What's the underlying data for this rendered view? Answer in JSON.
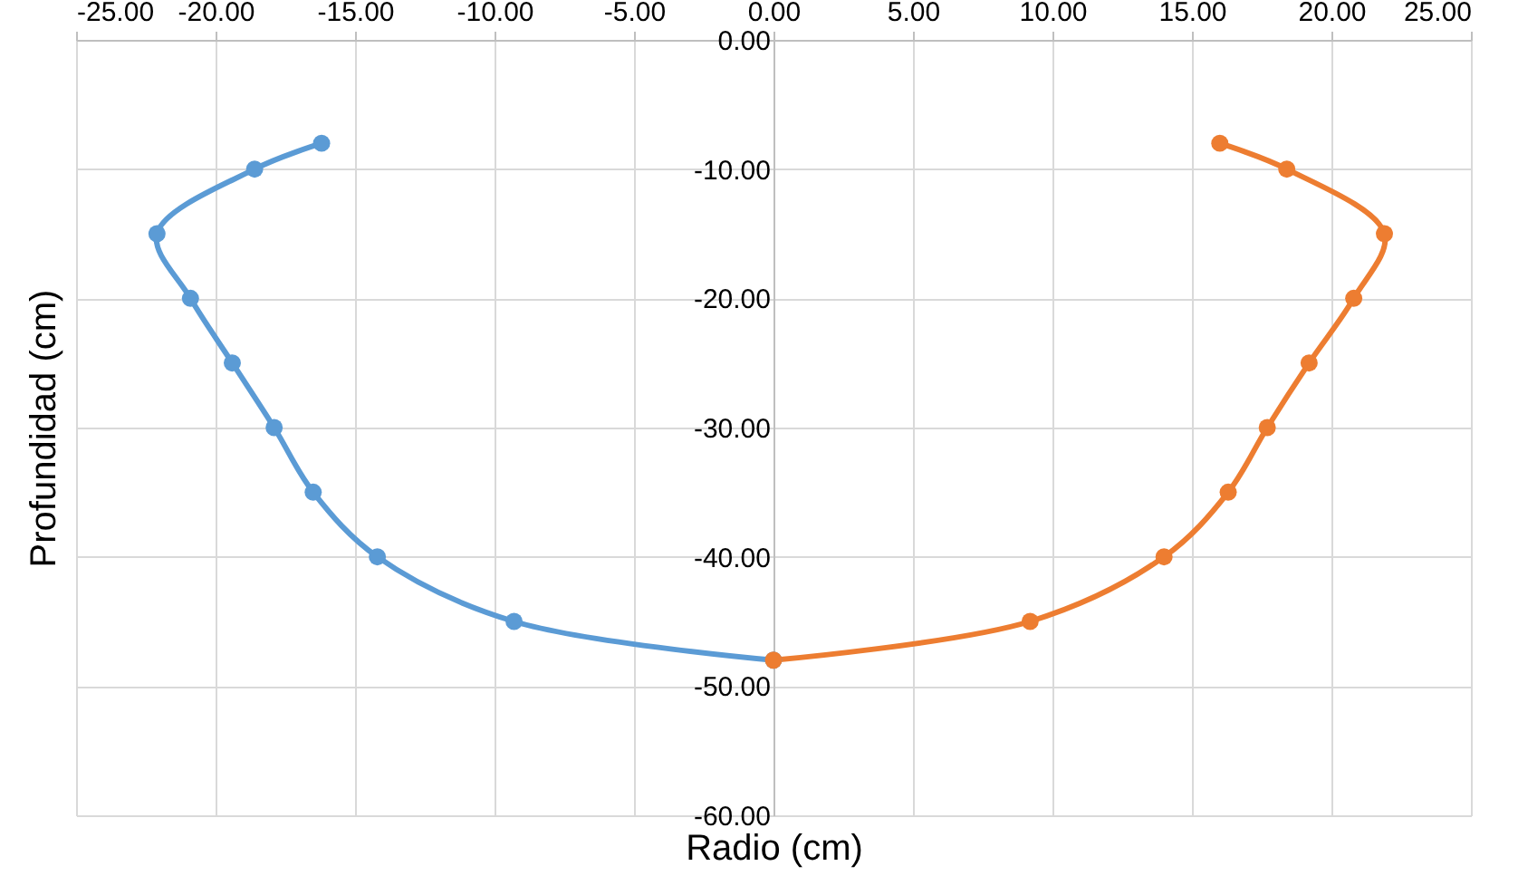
{
  "chart_data": {
    "type": "line",
    "xlabel": "Radio (cm)",
    "ylabel": "Profundidad (cm)",
    "xlim": [
      -25,
      25
    ],
    "xticks": [
      {
        "value": -25,
        "label": "-25.00"
      },
      {
        "value": -20,
        "label": "-20.00"
      },
      {
        "value": -15,
        "label": "-15.00"
      },
      {
        "value": -10,
        "label": "-10.00"
      },
      {
        "value": -5,
        "label": "-5.00"
      },
      {
        "value": 0,
        "label": "0.00"
      },
      {
        "value": 5,
        "label": "5.00"
      },
      {
        "value": 10,
        "label": "10.00"
      },
      {
        "value": 15,
        "label": "15.00"
      },
      {
        "value": 20,
        "label": "20.00"
      },
      {
        "value": 25,
        "label": "25.00"
      }
    ],
    "ylim": [
      -60,
      0
    ],
    "yticks": [
      {
        "value": -60,
        "label": "-60.00"
      },
      {
        "value": -50,
        "label": "-50.00"
      },
      {
        "value": -40,
        "label": "-40.00"
      },
      {
        "value": -30,
        "label": "-30.00"
      },
      {
        "value": -20,
        "label": "-20.00"
      },
      {
        "value": -10,
        "label": "-10.00"
      },
      {
        "value": 0,
        "label": "0.00"
      }
    ],
    "grid": true,
    "marker": "circle",
    "line_style": "solid",
    "series": [
      {
        "color": "#5b9bd5",
        "x": [
          -16.2,
          -18.6,
          -22.1,
          -20.9,
          -19.4,
          -17.9,
          -16.5,
          -14.2,
          -9.3,
          0
        ],
        "values": [
          -8,
          -10,
          -15,
          -20,
          -25,
          -30,
          -35,
          -40,
          -45,
          -48
        ]
      },
      {
        "color": "#ed7d31",
        "x": [
          16.0,
          18.4,
          21.9,
          20.8,
          19.2,
          17.7,
          16.3,
          14.0,
          9.2,
          0
        ],
        "values": [
          -8,
          -10,
          -15,
          -20,
          -25,
          -30,
          -35,
          -40,
          -45,
          -48
        ]
      }
    ]
  }
}
